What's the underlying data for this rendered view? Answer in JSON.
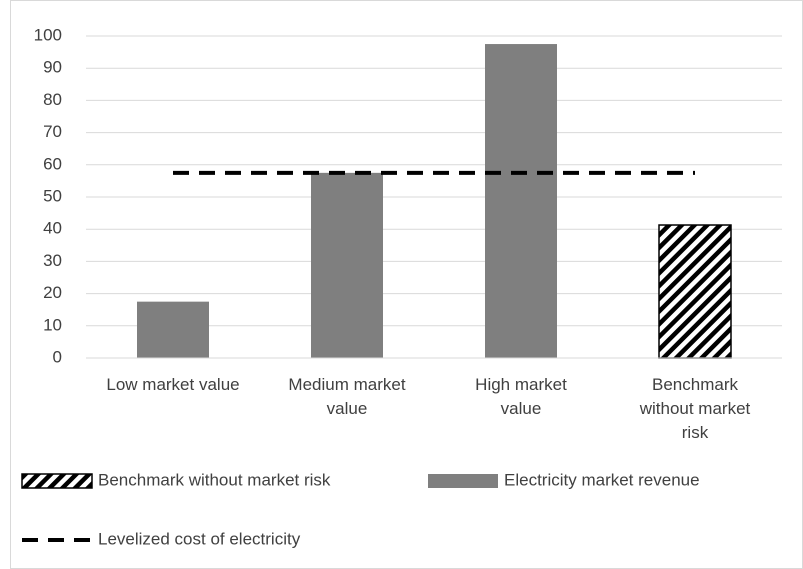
{
  "chart_data": {
    "type": "bar",
    "categories": [
      "Low market value",
      "Medium market value",
      "High market value",
      "Benchmark without market risk"
    ],
    "series": [
      {
        "name": "Benchmark without market risk",
        "color": "#000000",
        "pattern": "hatch",
        "values": [
          null,
          null,
          null,
          41.3
        ]
      },
      {
        "name": "Electricity market revenue",
        "color": "#7f7f7f",
        "values": [
          17.5,
          57.5,
          97.5,
          null
        ]
      },
      {
        "name": "Levelized cost of electricity",
        "color": "#000000",
        "type": "line",
        "style": "dashed",
        "values": [
          57.5,
          57.5,
          57.5,
          57.5
        ]
      }
    ],
    "ylim": [
      0,
      100
    ],
    "yticks": [
      0,
      10,
      20,
      30,
      40,
      50,
      60,
      70,
      80,
      90,
      100
    ],
    "grid": true,
    "legend": "bottom"
  }
}
